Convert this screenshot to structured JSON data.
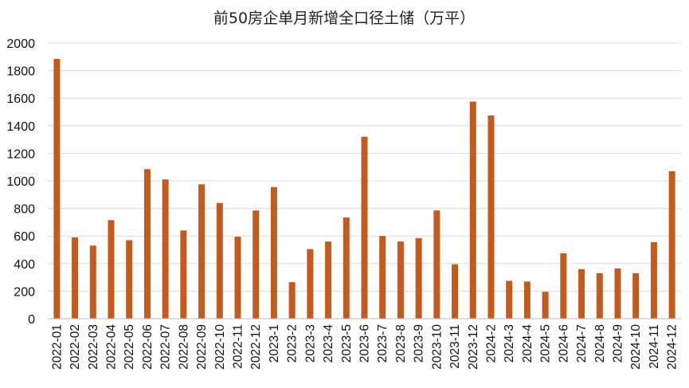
{
  "chart_data": {
    "type": "bar",
    "title": "前50房企单月新增全口径土储（万平）",
    "xlabel": "",
    "ylabel": "",
    "ylim": [
      0,
      2000
    ],
    "yticks": [
      0,
      200,
      400,
      600,
      800,
      1000,
      1200,
      1400,
      1600,
      1800,
      2000
    ],
    "grid": true,
    "legend": "none",
    "bar_color": "#c55a1e",
    "categories": [
      "2022-01",
      "2022-02",
      "2022-03",
      "2022-04",
      "2022-05",
      "2022-06",
      "2022-07",
      "2022-08",
      "2022-09",
      "2022-10",
      "2022-11",
      "2022-12",
      "2023-1",
      "2023-2",
      "2023-3",
      "2023-4",
      "2023-5",
      "2023-6",
      "2023-7",
      "2023-8",
      "2023-9",
      "2023-10",
      "2023-11",
      "2023-12",
      "2024-2",
      "2024-3",
      "2024-4",
      "2024-5",
      "2024-6",
      "2024-7",
      "2024-8",
      "2024-9",
      "2024-10",
      "2024-11",
      "2024-12"
    ],
    "values": [
      1885,
      590,
      530,
      715,
      570,
      1085,
      1010,
      640,
      975,
      840,
      595,
      785,
      955,
      265,
      505,
      560,
      735,
      1320,
      600,
      560,
      585,
      785,
      395,
      1575,
      1475,
      275,
      270,
      195,
      475,
      360,
      330,
      365,
      330,
      555,
      1070
    ]
  }
}
